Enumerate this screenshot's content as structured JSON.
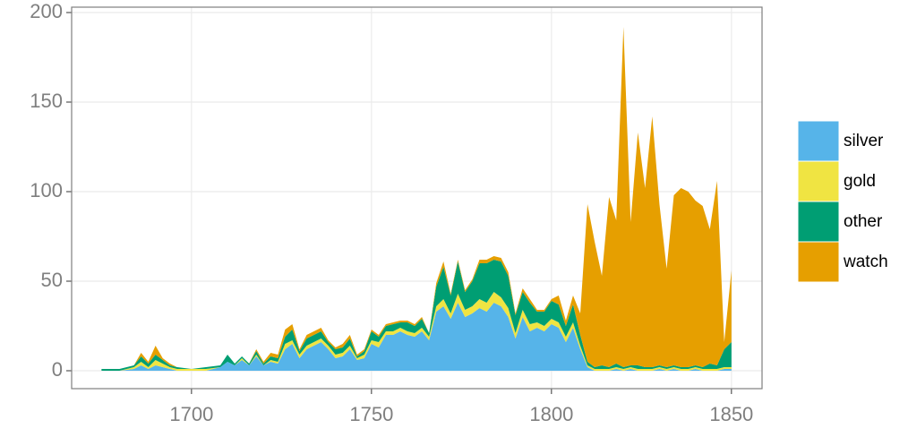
{
  "chart_data": {
    "type": "stacked_area",
    "x": [
      1675,
      1680,
      1684,
      1686,
      1688,
      1690,
      1692,
      1694,
      1696,
      1700,
      1704,
      1708,
      1710,
      1712,
      1714,
      1716,
      1718,
      1720,
      1722,
      1724,
      1726,
      1728,
      1730,
      1732,
      1734,
      1736,
      1738,
      1740,
      1742,
      1744,
      1746,
      1748,
      1750,
      1752,
      1754,
      1756,
      1758,
      1760,
      1762,
      1764,
      1766,
      1768,
      1770,
      1772,
      1774,
      1776,
      1778,
      1780,
      1782,
      1784,
      1786,
      1788,
      1790,
      1792,
      1794,
      1796,
      1798,
      1800,
      1802,
      1804,
      1806,
      1808,
      1810,
      1812,
      1814,
      1816,
      1818,
      1820,
      1822,
      1824,
      1826,
      1828,
      1830,
      1832,
      1834,
      1836,
      1838,
      1840,
      1842,
      1844,
      1846,
      1848,
      1850
    ],
    "series": [
      {
        "name": "silver",
        "color": "#56B4E9",
        "values": [
          0,
          0,
          1,
          3,
          1,
          3,
          2,
          1,
          0,
          0,
          0,
          2,
          5,
          3,
          6,
          3,
          8,
          3,
          5,
          4,
          12,
          15,
          7,
          12,
          14,
          16,
          12,
          7,
          8,
          12,
          6,
          7,
          15,
          13,
          20,
          20,
          22,
          20,
          19,
          22,
          17,
          33,
          36,
          29,
          38,
          30,
          32,
          35,
          33,
          38,
          36,
          30,
          18,
          30,
          22,
          24,
          22,
          26,
          24,
          16,
          24,
          12,
          2,
          0,
          0,
          0,
          1,
          0,
          1,
          0,
          0,
          0,
          1,
          0,
          1,
          0,
          0,
          1,
          0,
          0,
          0,
          1,
          1
        ]
      },
      {
        "name": "gold",
        "color": "#F0E442",
        "values": [
          0,
          0,
          1,
          2,
          1,
          3,
          2,
          1,
          1,
          1,
          1,
          0,
          0,
          0,
          1,
          0,
          1,
          0,
          1,
          1,
          3,
          2,
          2,
          2,
          2,
          2,
          2,
          2,
          2,
          2,
          1,
          2,
          2,
          3,
          2,
          2,
          2,
          2,
          2,
          2,
          2,
          3,
          4,
          3,
          5,
          4,
          4,
          5,
          5,
          6,
          5,
          5,
          3,
          4,
          4,
          3,
          3,
          3,
          3,
          3,
          3,
          2,
          1,
          1,
          1,
          1,
          1,
          1,
          1,
          1,
          1,
          1,
          1,
          1,
          1,
          1,
          1,
          1,
          1,
          1,
          1,
          1,
          1
        ]
      },
      {
        "name": "other",
        "color": "#009E73",
        "values": [
          1,
          1,
          1,
          3,
          2,
          3,
          2,
          1,
          1,
          0,
          1,
          1,
          4,
          1,
          1,
          1,
          2,
          1,
          2,
          2,
          4,
          6,
          2,
          4,
          4,
          4,
          2,
          3,
          3,
          4,
          1,
          2,
          5,
          3,
          3,
          4,
          3,
          5,
          4,
          5,
          2,
          11,
          18,
          10,
          18,
          10,
          14,
          20,
          22,
          18,
          20,
          18,
          10,
          10,
          12,
          6,
          8,
          10,
          10,
          6,
          10,
          6,
          2,
          1,
          2,
          1,
          2,
          1,
          1,
          2,
          1,
          1,
          1,
          1,
          1,
          1,
          1,
          1,
          1,
          3,
          2,
          10,
          14
        ]
      },
      {
        "name": "watch",
        "color": "#E69F00",
        "values": [
          0,
          0,
          0,
          2,
          1,
          5,
          1,
          1,
          0,
          0,
          0,
          0,
          0,
          0,
          0,
          0,
          1,
          1,
          2,
          2,
          4,
          3,
          1,
          2,
          2,
          2,
          1,
          1,
          2,
          2,
          1,
          1,
          1,
          1,
          1,
          1,
          1,
          1,
          1,
          1,
          0,
          2,
          3,
          1,
          1,
          1,
          1,
          2,
          2,
          2,
          2,
          2,
          1,
          2,
          2,
          1,
          1,
          1,
          5,
          3,
          5,
          12,
          88,
          70,
          50,
          95,
          80,
          190,
          80,
          130,
          100,
          140,
          90,
          55,
          95,
          100,
          98,
          92,
          90,
          75,
          103,
          4,
          40
        ]
      }
    ],
    "xlim": [
      1666.7,
      1858.5
    ],
    "ylim": [
      -10,
      203
    ],
    "xticks": [
      1700,
      1750,
      1800,
      1850
    ],
    "yticks": [
      0,
      50,
      100,
      150,
      200
    ],
    "grid": true
  }
}
